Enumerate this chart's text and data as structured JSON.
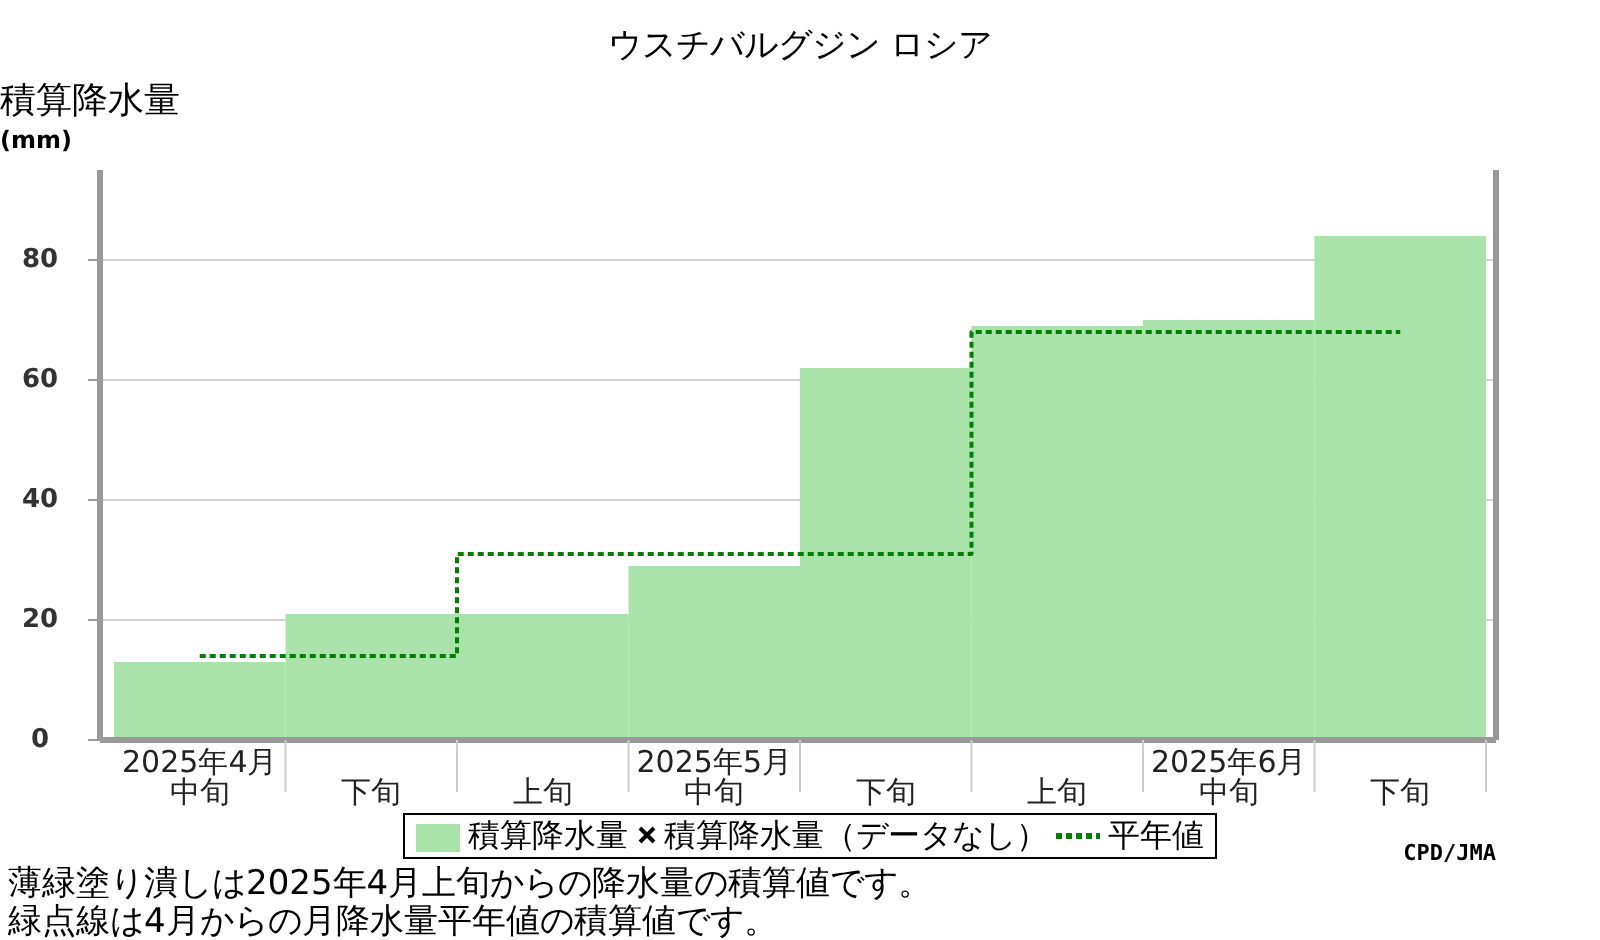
{
  "chart_data": {
    "type": "bar",
    "title": "ウスチバルグジン ロシア",
    "ylabel": "積算降水量(mm)",
    "categories": [
      "2025年4月中旬",
      "下旬",
      "上旬",
      "2025年5月中旬",
      "下旬",
      "上旬",
      "2025年6月中旬",
      "下旬"
    ],
    "series": [
      {
        "name": "積算降水量",
        "color": "#aae3aa",
        "values": [
          13,
          21,
          21,
          29,
          62,
          69,
          70,
          84
        ]
      },
      {
        "name": "積算降水量（データなし）",
        "type": "scatter",
        "marker": "cross",
        "color": "#000000",
        "values": [
          null,
          null,
          null,
          null,
          null,
          null,
          null,
          null
        ]
      },
      {
        "name": "平年値",
        "type": "step",
        "line_style": "dotted",
        "color": "#008000",
        "values": [
          14,
          14,
          31,
          31,
          31,
          68,
          68,
          68
        ]
      }
    ],
    "ylim": [
      0,
      95
    ],
    "yticks": [
      0,
      20,
      40,
      60,
      80
    ],
    "grid": "y",
    "legend": "bottom",
    "annotations": [
      "CPD/JMA",
      "薄緑塗り潰しは2025年4月上旬からの降水量の積算値です。",
      "緑点線は4月からの月降水量平年値の積算値です。"
    ]
  }
}
